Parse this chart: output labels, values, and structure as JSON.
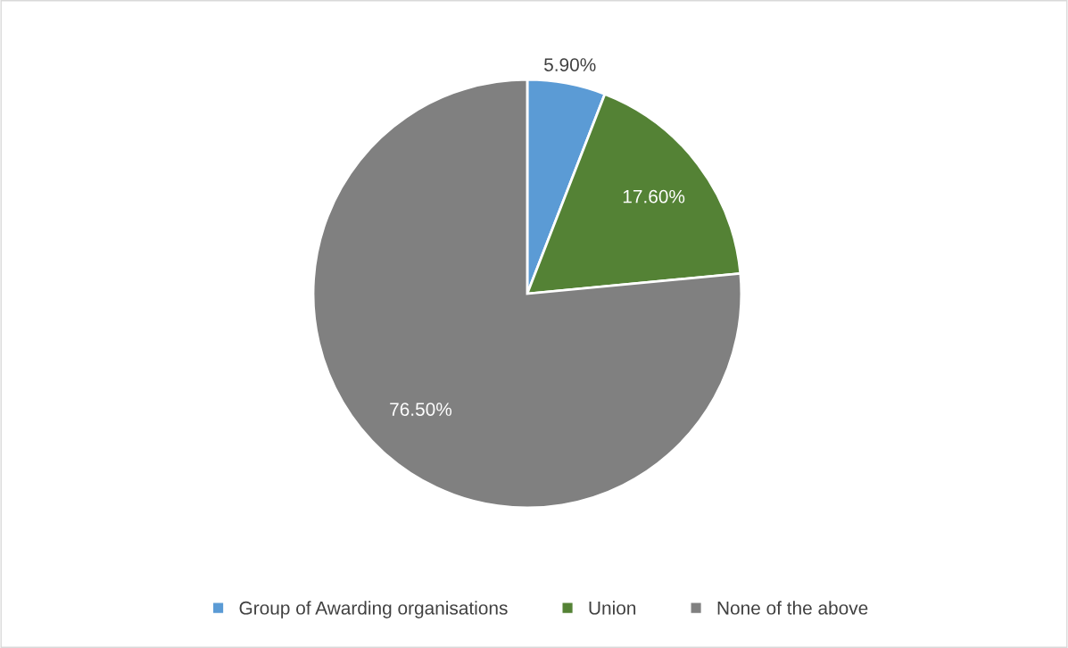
{
  "chart_data": {
    "type": "pie",
    "categories": [
      "Group of Awarding organisations",
      "Union",
      "None of the above"
    ],
    "values": [
      5.9,
      17.6,
      76.5
    ],
    "colors": [
      "#5b9bd5",
      "#548235",
      "#808080"
    ],
    "value_labels": [
      "5.90%",
      "17.60%",
      "76.50%"
    ],
    "legend": "bottom"
  }
}
